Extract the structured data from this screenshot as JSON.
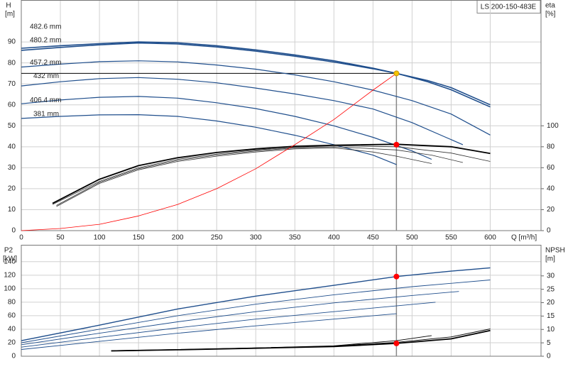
{
  "model": "LS 200-150-483E",
  "chart_data": [
    {
      "type": "line",
      "xlabel": "Q [m³/h]",
      "ylabel": "H",
      "yunit": "[m]",
      "y2label": "eta",
      "y2unit": "[%]",
      "xlim": [
        0,
        665
      ],
      "ylim": [
        0,
        110
      ],
      "y2lim": [
        0,
        220
      ],
      "xticks": [
        0,
        50,
        100,
        150,
        200,
        250,
        300,
        350,
        400,
        450,
        500,
        550,
        600
      ],
      "yticks": [
        0,
        10,
        20,
        30,
        40,
        50,
        60,
        70,
        80,
        90
      ],
      "y2ticks": [
        0,
        20,
        40,
        60,
        80,
        100
      ],
      "grid": true,
      "xtick_labels": true,
      "guide": "cross",
      "series": [
        {
          "name": "482.6 mm",
          "color": "#1f4e8c",
          "width": 1.6,
          "axis": "y",
          "x": [
            0,
            50,
            100,
            150,
            200,
            250,
            300,
            350,
            400,
            450,
            480,
            520,
            550,
            600
          ],
          "values": [
            87,
            88.2,
            89.2,
            90,
            89.6,
            88.2,
            86.2,
            83.8,
            81,
            77.5,
            75,
            71.6,
            68.2,
            60
          ]
        },
        {
          "name": "480.2 mm",
          "color": "#1f4e8c",
          "width": 1.6,
          "axis": "y",
          "x": [
            0,
            50,
            100,
            150,
            200,
            250,
            300,
            350,
            400,
            450,
            480,
            520,
            550,
            600
          ],
          "values": [
            86,
            87.4,
            88.6,
            89.5,
            89,
            87.6,
            85.6,
            83.2,
            80.4,
            77.2,
            75,
            71,
            67.2,
            59
          ]
        },
        {
          "name": "457.2 mm",
          "color": "#1f4e8c",
          "width": 1.2,
          "axis": "y",
          "x": [
            0,
            50,
            100,
            150,
            200,
            250,
            300,
            350,
            400,
            450,
            500,
            550,
            600
          ],
          "values": [
            78,
            79.4,
            80.6,
            81,
            80.5,
            79,
            77,
            74.3,
            71,
            67,
            62,
            55.6,
            45.6
          ]
        },
        {
          "name": "432 mm",
          "color": "#1f4e8c",
          "width": 1.2,
          "axis": "y",
          "x": [
            0,
            50,
            100,
            150,
            200,
            250,
            300,
            350,
            400,
            450,
            500,
            540,
            565
          ],
          "values": [
            69,
            71,
            72.5,
            73,
            72.2,
            70.5,
            68,
            65.2,
            62,
            58,
            51.5,
            45,
            41
          ]
        },
        {
          "name": "406.4 mm",
          "color": "#1f4e8c",
          "width": 1.2,
          "axis": "y",
          "x": [
            0,
            50,
            100,
            150,
            200,
            250,
            300,
            350,
            400,
            450,
            500,
            525
          ],
          "values": [
            60.5,
            62.3,
            63.6,
            64,
            63.2,
            61,
            58.2,
            54.5,
            50,
            44.5,
            38,
            34
          ]
        },
        {
          "name": "381 mm",
          "color": "#1f4e8c",
          "width": 1.2,
          "axis": "y",
          "x": [
            0,
            50,
            100,
            150,
            200,
            250,
            300,
            350,
            400,
            450,
            480
          ],
          "values": [
            53.5,
            54.5,
            55.2,
            55.3,
            54.5,
            52.3,
            49.3,
            45.5,
            41,
            36,
            31.5
          ]
        },
        {
          "color": "#000000",
          "width": 1.8,
          "axis": "y2",
          "x": [
            40,
            100,
            150,
            200,
            250,
            300,
            350,
            400,
            480,
            550,
            600
          ],
          "values": [
            26,
            49,
            62,
            69.5,
            74.5,
            78,
            80.5,
            81.5,
            82.4,
            80,
            73.6
          ]
        },
        {
          "color": "#333333",
          "width": 0.8,
          "axis": "y2",
          "x": [
            40,
            100,
            150,
            200,
            250,
            300,
            350,
            400,
            480,
            550,
            600
          ],
          "values": [
            25,
            47,
            60,
            68,
            73,
            77,
            79.5,
            81,
            80,
            74,
            66
          ]
        },
        {
          "color": "#333333",
          "width": 0.8,
          "axis": "y2",
          "x": [
            45,
            100,
            150,
            200,
            250,
            300,
            350,
            400,
            480,
            525,
            565
          ],
          "values": [
            24,
            46,
            59,
            67,
            72,
            76,
            79,
            80,
            77,
            72,
            65
          ]
        },
        {
          "color": "#333333",
          "width": 0.8,
          "axis": "y2",
          "x": [
            45,
            100,
            150,
            200,
            250,
            300,
            350,
            400,
            450,
            480,
            525
          ],
          "values": [
            23,
            45,
            58,
            66,
            71,
            75,
            78,
            79,
            75,
            71,
            64
          ]
        },
        {
          "color": "#ff0000",
          "width": 0.8,
          "axis": "y",
          "x": [
            0,
            50,
            100,
            150,
            200,
            250,
            300,
            350,
            400,
            450,
            480
          ],
          "values": [
            0,
            1,
            3,
            7,
            12.5,
            20,
            29.5,
            41,
            53,
            67,
            75
          ]
        }
      ],
      "points": [
        {
          "x": 480,
          "value": 75,
          "axis": "y",
          "color": "#f5c400"
        },
        {
          "x": 480,
          "value": 82,
          "axis": "y2",
          "color": "#ff0000"
        }
      ]
    },
    {
      "type": "line",
      "ylabel": "P2",
      "yunit": "[kW]",
      "y2label": "NPSH",
      "y2unit": "[m]",
      "xlim": [
        0,
        665
      ],
      "ylim": [
        0,
        165
      ],
      "y2lim": [
        0,
        41.6
      ],
      "xticks": [
        0,
        50,
        100,
        150,
        200,
        250,
        300,
        350,
        400,
        450,
        500,
        550,
        600
      ],
      "yticks": [
        0,
        20,
        40,
        60,
        80,
        100,
        120,
        140
      ],
      "y2ticks": [
        0,
        5,
        10,
        15,
        20,
        25,
        30
      ],
      "grid": true,
      "xtick_labels": false,
      "guide": "vertical",
      "series": [
        {
          "color": "#1f4e8c",
          "width": 1.4,
          "axis": "y",
          "x": [
            0,
            100,
            200,
            300,
            400,
            480,
            550,
            600
          ],
          "values": [
            23,
            46,
            70,
            89,
            105,
            118,
            126,
            131
          ]
        },
        {
          "color": "#1f4e8c",
          "width": 0.9,
          "axis": "y",
          "x": [
            0,
            100,
            200,
            300,
            400,
            500,
            600
          ],
          "values": [
            20,
            40,
            60,
            77,
            91,
            103,
            113
          ]
        },
        {
          "color": "#1f4e8c",
          "width": 0.9,
          "axis": "y",
          "x": [
            0,
            100,
            200,
            300,
            400,
            500,
            560
          ],
          "values": [
            17,
            34,
            51,
            66,
            79,
            90,
            96
          ]
        },
        {
          "color": "#1f4e8c",
          "width": 0.9,
          "axis": "y",
          "x": [
            0,
            100,
            200,
            300,
            400,
            530
          ],
          "values": [
            13.5,
            28,
            42,
            55,
            66,
            80
          ]
        },
        {
          "color": "#1f4e8c",
          "width": 0.9,
          "axis": "y",
          "x": [
            0,
            100,
            200,
            300,
            400,
            480
          ],
          "values": [
            10,
            22,
            34,
            45,
            55,
            63
          ]
        },
        {
          "color": "#000000",
          "width": 1.8,
          "axis": "y2",
          "x": [
            115,
            200,
            300,
            400,
            480,
            550,
            600
          ],
          "values": [
            2,
            2.4,
            3,
            3.6,
            4.8,
            6.5,
            9.6
          ]
        },
        {
          "color": "#000000",
          "width": 0.9,
          "axis": "y2",
          "x": [
            115,
            200,
            300,
            400,
            480,
            550,
            600
          ],
          "values": [
            2.1,
            2.5,
            3.1,
            3.8,
            5.2,
            7.2,
            10.2
          ]
        },
        {
          "color": "#000000",
          "width": 0.9,
          "axis": "y2",
          "x": [
            130,
            300,
            400,
            480,
            525
          ],
          "values": [
            2,
            3.1,
            3.9,
            5.8,
            7.7
          ]
        }
      ],
      "points": [
        {
          "x": 480,
          "value": 118,
          "axis": "y",
          "color": "#ff0000"
        },
        {
          "x": 480,
          "value": 4.8,
          "axis": "y2",
          "color": "#ff0000"
        }
      ]
    }
  ]
}
